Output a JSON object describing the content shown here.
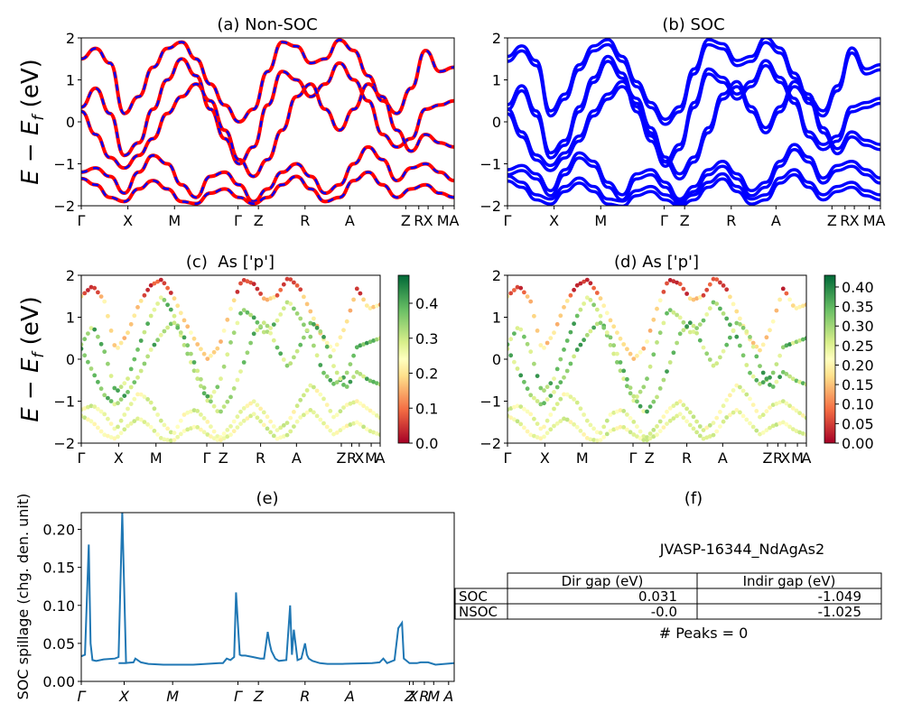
{
  "chart_data": [
    {
      "type": "line",
      "title": "(a) Non-SOC",
      "ylabel": "E − E_f (eV)",
      "ylim": [
        -2,
        2
      ],
      "yticks": [
        "−2",
        "−1",
        "0",
        "1",
        "2"
      ],
      "kpath_labels": [
        "Γ",
        "X",
        "M",
        "Γ",
        "Z",
        "R",
        "A",
        "Z",
        "R",
        "X",
        "M",
        "A"
      ],
      "series": [
        {
          "color": "#ff0000",
          "style": "solid",
          "bands": [
            [
              1.5,
              1.75,
              1.4,
              0.2,
              0.6,
              1.3,
              1.75,
              1.9,
              1.5,
              0.9,
              0.4,
              0.0,
              0.3,
              1.2,
              1.9,
              1.8,
              1.4,
              1.5,
              1.95,
              1.7,
              1.1,
              0.5,
              0.2,
              0.8,
              1.7,
              1.2,
              1.3
            ],
            [
              0.35,
              0.8,
              0.2,
              -0.8,
              -0.5,
              0.3,
              1.0,
              1.5,
              1.1,
              0.3,
              -0.4,
              -1.0,
              -0.6,
              0.4,
              1.2,
              1.0,
              0.6,
              0.9,
              1.4,
              1.0,
              0.5,
              -0.3,
              -0.6,
              -0.4,
              0.3,
              0.4,
              0.5
            ],
            [
              0.25,
              -0.3,
              -0.85,
              -1.1,
              -0.8,
              -0.4,
              0.2,
              0.6,
              0.9,
              0.5,
              -0.2,
              -0.9,
              -1.3,
              -0.9,
              -0.2,
              0.6,
              0.9,
              0.3,
              -0.2,
              0.3,
              0.9,
              0.6,
              -0.2,
              -0.7,
              -0.3,
              -0.5,
              -0.6
            ],
            [
              -1.2,
              -1.1,
              -1.3,
              -1.7,
              -1.2,
              -0.8,
              -1.0,
              -1.5,
              -1.8,
              -1.3,
              -1.2,
              -1.5,
              -1.9,
              -1.6,
              -1.2,
              -1.0,
              -1.3,
              -1.7,
              -1.5,
              -1.0,
              -0.6,
              -0.9,
              -1.4,
              -1.1,
              -1.0,
              -1.2,
              -1.4
            ],
            [
              -1.35,
              -1.5,
              -1.8,
              -1.9,
              -1.6,
              -1.4,
              -1.6,
              -1.9,
              -1.95,
              -1.7,
              -1.6,
              -1.8,
              -1.95,
              -1.8,
              -1.5,
              -1.3,
              -1.6,
              -1.9,
              -1.8,
              -1.4,
              -1.2,
              -1.5,
              -1.8,
              -1.6,
              -1.5,
              -1.7,
              -1.8
            ]
          ]
        },
        {
          "color": "#0000ff",
          "style": "dashed"
        }
      ]
    },
    {
      "type": "line",
      "title": "(b) SOC",
      "ylim": [
        -2,
        2
      ],
      "yticks": [
        "−2",
        "−1",
        "0",
        "1",
        "2"
      ],
      "kpath_labels": [
        "Γ",
        "X",
        "M",
        "Γ",
        "Z",
        "R",
        "A",
        "Z",
        "R",
        "X",
        "M",
        "A"
      ],
      "series": [
        {
          "color": "#0000ff",
          "style": "solid",
          "split_bands": true
        }
      ]
    },
    {
      "type": "scatter",
      "title": "(c)  As ['p']",
      "ylabel": "E − E_f (eV)",
      "ylim": [
        -2,
        2
      ],
      "yticks": [
        "−2",
        "−1",
        "0",
        "1",
        "2"
      ],
      "kpath_labels": [
        "Γ",
        "X",
        "M",
        "Γ",
        "Z",
        "R",
        "A",
        "Z",
        "R",
        "X",
        "M",
        "A"
      ],
      "colorbar": {
        "colormap": "RdYlGn",
        "range": [
          0,
          0.48
        ],
        "ticks": [
          "0.0",
          "0.1",
          "0.2",
          "0.3",
          "0.4"
        ]
      }
    },
    {
      "type": "scatter",
      "title": "(d) As ['p']",
      "ylim": [
        -2,
        2
      ],
      "yticks": [
        "−2",
        "−1",
        "0",
        "1",
        "2"
      ],
      "kpath_labels": [
        "Γ",
        "X",
        "M",
        "Γ",
        "Z",
        "R",
        "A",
        "Z",
        "R",
        "X",
        "M",
        "A"
      ],
      "colorbar": {
        "colormap": "RdYlGn",
        "range": [
          0,
          0.43
        ],
        "ticks": [
          "0.00",
          "0.05",
          "0.10",
          "0.15",
          "0.20",
          "0.25",
          "0.30",
          "0.35",
          "0.40"
        ]
      }
    },
    {
      "type": "line",
      "title": "(e)",
      "ylabel": "SOC spillage (chg. den. unit)",
      "ylim": [
        0,
        0.222
      ],
      "yticks": [
        "0.00",
        "0.05",
        "0.10",
        "0.15",
        "0.20"
      ],
      "ytick_values": [
        0,
        0.05,
        0.1,
        0.15,
        0.2
      ],
      "kpath_labels": [
        "Γ",
        "X",
        "M",
        "Γ",
        "Z",
        "R",
        "A",
        "Z",
        "X",
        "R",
        "M",
        "A"
      ],
      "x": [
        0.0,
        0.01,
        0.02,
        0.025,
        0.03,
        0.04,
        0.06,
        0.09,
        0.1,
        0.11,
        0.12,
        0.1,
        0.113,
        0.115,
        0.14,
        0.145,
        0.16,
        0.18,
        0.22,
        0.3,
        0.37,
        0.38,
        0.39,
        0.4,
        0.41,
        0.415,
        0.425,
        0.43,
        0.44,
        0.46,
        0.48,
        0.49,
        0.5,
        0.505,
        0.51,
        0.52,
        0.53,
        0.55,
        0.56,
        0.565,
        0.57,
        0.58,
        0.59,
        0.6,
        0.605,
        0.61,
        0.62,
        0.64,
        0.66,
        0.7,
        0.78,
        0.8,
        0.81,
        0.82,
        0.84,
        0.85,
        0.86,
        0.865,
        0.87,
        0.88,
        0.9,
        0.91,
        0.93,
        0.95,
        1.0
      ],
      "y": [
        0.033,
        0.035,
        0.18,
        0.05,
        0.028,
        0.027,
        0.029,
        0.03,
        0.032,
        0.222,
        0.024,
        0.024,
        0.024,
        0.024,
        0.025,
        0.03,
        0.025,
        0.023,
        0.022,
        0.022,
        0.024,
        0.024,
        0.03,
        0.028,
        0.032,
        0.117,
        0.035,
        0.034,
        0.034,
        0.032,
        0.03,
        0.03,
        0.065,
        0.05,
        0.04,
        0.03,
        0.027,
        0.028,
        0.1,
        0.035,
        0.068,
        0.028,
        0.03,
        0.05,
        0.035,
        0.03,
        0.027,
        0.024,
        0.023,
        0.023,
        0.024,
        0.025,
        0.03,
        0.024,
        0.028,
        0.07,
        0.077,
        0.03,
        0.028,
        0.024,
        0.024,
        0.025,
        0.025,
        0.022,
        0.024
      ],
      "color": "#1f77b4"
    },
    {
      "type": "table",
      "title": "(f)",
      "subtitle": "JVASP-16344_NdAgAs2",
      "columns": [
        "",
        "Dir gap (eV)",
        "Indir gap (eV)"
      ],
      "rows": [
        [
          "SOC",
          "0.031",
          "-1.049"
        ],
        [
          "NSOC",
          "-0.0",
          "-1.025"
        ]
      ],
      "footer": "# Peaks = 0"
    }
  ]
}
